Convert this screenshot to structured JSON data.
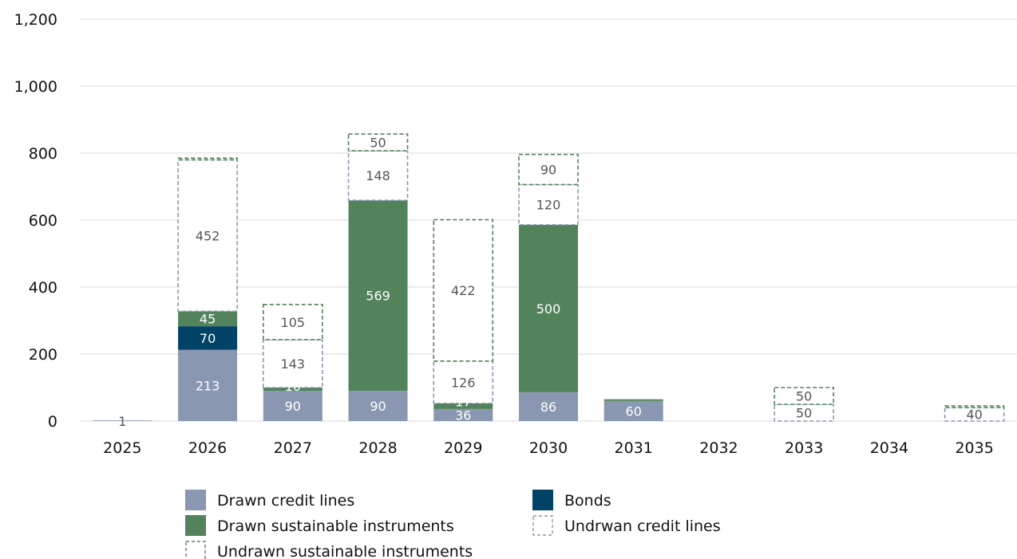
{
  "chart_data": {
    "type": "bar",
    "stacked": true,
    "categories": [
      "2025",
      "2026",
      "2027",
      "2028",
      "2029",
      "2030",
      "2031",
      "2032",
      "2033",
      "2034",
      "2035"
    ],
    "series": [
      {
        "name": "Drawn credit lines",
        "key": "drawn_credit",
        "color": "#8a97b1",
        "style": "solid",
        "values": [
          1,
          213,
          90,
          90,
          36,
          86,
          60,
          0,
          0,
          0,
          0
        ]
      },
      {
        "name": "Bonds",
        "key": "bonds",
        "color": "#004366",
        "style": "solid",
        "values": [
          0,
          70,
          0,
          0,
          0,
          0,
          0,
          0,
          0,
          0,
          0
        ]
      },
      {
        "name": "Drawn sustainable instruments",
        "key": "drawn_sustainable",
        "color": "#52835a",
        "style": "solid",
        "values": [
          0,
          45,
          10,
          569,
          17,
          500,
          5,
          0,
          0,
          0,
          0
        ]
      },
      {
        "name": "Undrwan credit lines",
        "key": "undrawn_credit",
        "color": "#8a97b1",
        "style": "dashed",
        "values": [
          0,
          452,
          143,
          148,
          126,
          120,
          0,
          0,
          50,
          0,
          40
        ]
      },
      {
        "name": "Undrawn sustainable instruments",
        "key": "undrawn_sustainable",
        "color": "#52835a",
        "style": "dashed",
        "values": [
          0,
          5,
          105,
          50,
          422,
          90,
          0,
          0,
          50,
          0,
          5
        ]
      }
    ],
    "data_labels": [
      {
        "category": "2025",
        "series": "drawn_credit",
        "text": "1"
      },
      {
        "category": "2026",
        "series": "drawn_credit",
        "text": "213"
      },
      {
        "category": "2026",
        "series": "bonds",
        "text": "70"
      },
      {
        "category": "2026",
        "series": "drawn_sustainable",
        "text": "45"
      },
      {
        "category": "2026",
        "series": "undrawn_credit",
        "text": "452"
      },
      {
        "category": "2027",
        "series": "drawn_credit",
        "text": "90"
      },
      {
        "category": "2027",
        "series": "drawn_sustainable",
        "text": "10"
      },
      {
        "category": "2027",
        "series": "undrawn_credit",
        "text": "143"
      },
      {
        "category": "2027",
        "series": "undrawn_sustainable",
        "text": "105"
      },
      {
        "category": "2028",
        "series": "drawn_credit",
        "text": "90"
      },
      {
        "category": "2028",
        "series": "drawn_sustainable",
        "text": "569"
      },
      {
        "category": "2028",
        "series": "undrawn_credit",
        "text": "148"
      },
      {
        "category": "2028",
        "series": "undrawn_sustainable",
        "text": "50"
      },
      {
        "category": "2029",
        "series": "drawn_credit",
        "text": "36"
      },
      {
        "category": "2029",
        "series": "drawn_sustainable",
        "text": "17"
      },
      {
        "category": "2029",
        "series": "undrawn_credit",
        "text": "126"
      },
      {
        "category": "2029",
        "series": "undrawn_sustainable",
        "text": "422"
      },
      {
        "category": "2030",
        "series": "drawn_credit",
        "text": "86"
      },
      {
        "category": "2030",
        "series": "drawn_sustainable",
        "text": "500"
      },
      {
        "category": "2030",
        "series": "undrawn_credit",
        "text": "120"
      },
      {
        "category": "2030",
        "series": "undrawn_sustainable",
        "text": "90"
      },
      {
        "category": "2031",
        "series": "drawn_credit",
        "text": "60"
      },
      {
        "category": "2033",
        "series": "undrawn_credit",
        "text": "50"
      },
      {
        "category": "2033",
        "series": "undrawn_sustainable",
        "text": "50"
      },
      {
        "category": "2035",
        "series": "undrawn_credit",
        "text": "40"
      }
    ],
    "y_ticks": [
      "0",
      "200",
      "400",
      "600",
      "800",
      "1,000",
      "1,200"
    ],
    "ylim": [
      0,
      1200
    ],
    "grid": true,
    "legend_position": "bottom"
  }
}
